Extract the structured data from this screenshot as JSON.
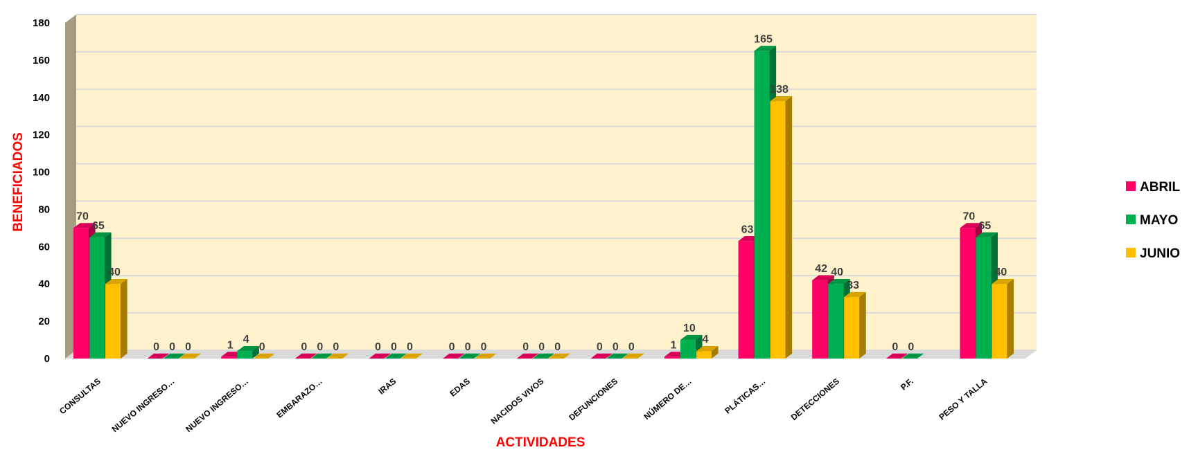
{
  "chart_data": {
    "type": "bar",
    "title": "",
    "xlabel": "ACTIVIDADES",
    "ylabel": "BENEFICIADOS",
    "ylim": [
      0,
      180
    ],
    "yticks": [
      0,
      20,
      40,
      60,
      80,
      100,
      120,
      140,
      160,
      180
    ],
    "grid": true,
    "legend_position": "right",
    "categories": [
      "CONSULTAS",
      "NUEVO INGRESO…",
      "NUEVO INGRESO…",
      "EMBARAZO…",
      "IRAS",
      "EDAS",
      "NACIDOS VIVOS",
      "DEFUNCIONES",
      "NÚMERO DE…",
      "PLÁTICAS…",
      "DETECCIONES",
      "P.F.",
      "PESO Y TALLA"
    ],
    "series": [
      {
        "name": "ABRIL",
        "color": "#ff0066",
        "values": [
          70,
          0,
          1,
          0,
          0,
          0,
          0,
          0,
          1,
          63,
          42,
          0,
          70
        ]
      },
      {
        "name": "MAYO",
        "color": "#00b050",
        "values": [
          65,
          0,
          4,
          0,
          0,
          0,
          0,
          0,
          10,
          165,
          40,
          0,
          65
        ]
      },
      {
        "name": "JUNIO",
        "color": "#ffc000",
        "values": [
          40,
          0,
          0,
          0,
          0,
          0,
          0,
          0,
          4,
          138,
          33,
          null,
          40
        ]
      }
    ],
    "wall_color": "#fff2cc",
    "side_wall_color": "#a69c82"
  }
}
